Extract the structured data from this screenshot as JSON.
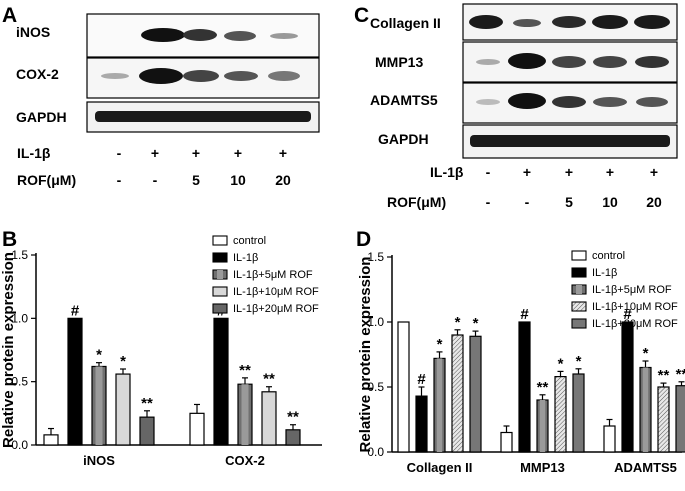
{
  "panels": {
    "A": {
      "label": "A",
      "rows": [
        "iNOS",
        "COX-2",
        "GAPDH"
      ],
      "treatments": [
        {
          "name": "IL-1β",
          "values": [
            "-",
            "+",
            "+",
            "+",
            "+"
          ]
        },
        {
          "name": "ROF(μM)",
          "values": [
            "-",
            "-",
            "5",
            "10",
            "20"
          ]
        }
      ]
    },
    "C": {
      "label": "C",
      "rows": [
        "Collagen II",
        "MMP13",
        "ADAMTS5",
        "GAPDH"
      ],
      "treatments": [
        {
          "name": "IL-1β",
          "values": [
            "-",
            "+",
            "+",
            "+",
            "+"
          ]
        },
        {
          "name": "ROF(μM)",
          "values": [
            "-",
            "-",
            "5",
            "10",
            "20"
          ]
        }
      ]
    },
    "B": {
      "label": "B"
    },
    "D": {
      "label": "D"
    }
  },
  "colors": {
    "control": "#ffffff",
    "il1b": "#000000",
    "il1b_5": "#707070",
    "il1b_10": "#d8d8d8",
    "il1b_20": "#666666",
    "d_il1b_10": "#c8c8c8",
    "d_il1b_20": "#777777"
  },
  "chart_data": [
    {
      "panel": "B",
      "type": "bar",
      "ylabel": "Relative protein expression",
      "xlabel": "",
      "ylim": [
        0,
        1.5
      ],
      "yticks": [
        "0.0",
        "0.5",
        "1.0",
        "1.5"
      ],
      "categories": [
        "iNOS",
        "COX-2"
      ],
      "legend_position": "top-right",
      "series": [
        {
          "name": "control",
          "values": [
            0.08,
            0.25
          ],
          "errors": [
            0.05,
            0.07
          ],
          "marks": [
            "",
            ""
          ]
        },
        {
          "name": "IL-1β",
          "values": [
            1.0,
            1.0
          ],
          "errors": [
            0,
            0
          ],
          "marks": [
            "#",
            "#"
          ]
        },
        {
          "name": "IL-1β+5μM ROF",
          "values": [
            0.62,
            0.48
          ],
          "errors": [
            0.03,
            0.05
          ],
          "marks": [
            "*",
            "**"
          ]
        },
        {
          "name": "IL-1β+10μM ROF",
          "values": [
            0.56,
            0.42
          ],
          "errors": [
            0.04,
            0.04
          ],
          "marks": [
            "*",
            "**"
          ]
        },
        {
          "name": "IL-1β+20μM ROF",
          "values": [
            0.22,
            0.12
          ],
          "errors": [
            0.05,
            0.04
          ],
          "marks": [
            "**",
            "**"
          ]
        }
      ]
    },
    {
      "panel": "D",
      "type": "bar",
      "ylabel": "Relative protein expression",
      "xlabel": "",
      "ylim": [
        0,
        1.5
      ],
      "yticks": [
        "0.0",
        "0.5",
        "1.0",
        "1.5"
      ],
      "categories": [
        "Collagen II",
        "MMP13",
        "ADAMTS5"
      ],
      "legend_position": "top-right",
      "series": [
        {
          "name": "control",
          "values": [
            1.0,
            0.15,
            0.2
          ],
          "errors": [
            0,
            0.05,
            0.05
          ],
          "marks": [
            "",
            "",
            ""
          ]
        },
        {
          "name": "IL-1β",
          "values": [
            0.43,
            1.0,
            1.0
          ],
          "errors": [
            0.07,
            0,
            0
          ],
          "marks": [
            "#",
            "#",
            "#"
          ]
        },
        {
          "name": "IL-1β+5μM ROF",
          "values": [
            0.72,
            0.4,
            0.65
          ],
          "errors": [
            0.05,
            0.04,
            0.05
          ],
          "marks": [
            "*",
            "**",
            "*"
          ]
        },
        {
          "name": "IL-1β+10μM ROF",
          "values": [
            0.9,
            0.58,
            0.5
          ],
          "errors": [
            0.04,
            0.04,
            0.03
          ],
          "marks": [
            "*",
            "*",
            "**"
          ]
        },
        {
          "name": "IL-1β+20μM ROF",
          "values": [
            0.89,
            0.6,
            0.51
          ],
          "errors": [
            0.04,
            0.04,
            0.03
          ],
          "marks": [
            "*",
            "*",
            "**"
          ]
        }
      ]
    }
  ]
}
